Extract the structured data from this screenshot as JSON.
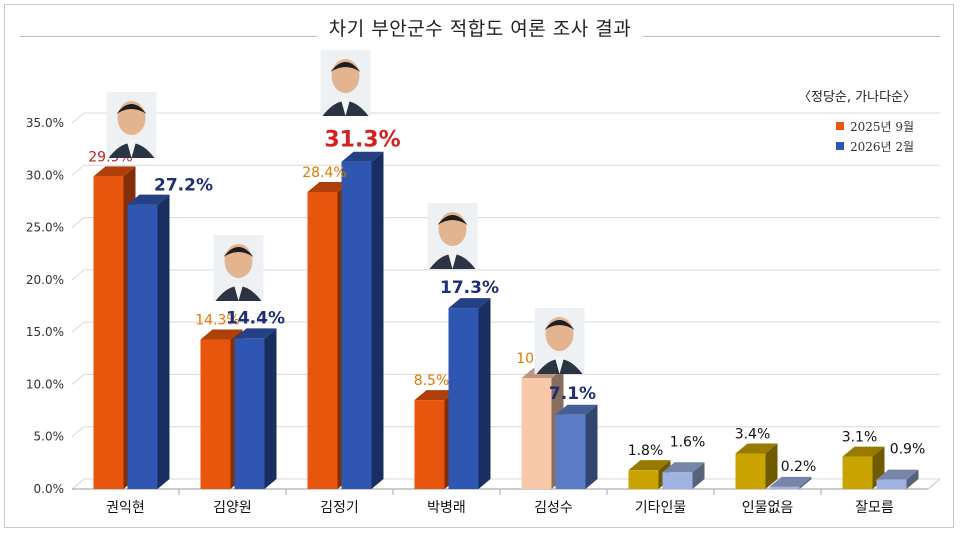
{
  "chart_data": {
    "type": "bar",
    "title": "차기 부안군수 적합도 여론 조사 결과",
    "note": "〈정당순, 가나다순〉",
    "categories": [
      "권익현",
      "김양원",
      "김정기",
      "박병래",
      "김성수",
      "기타인물",
      "인물없음",
      "잘모름"
    ],
    "series": [
      {
        "name": "2025년 9월",
        "values": [
          29.9,
          14.3,
          28.4,
          8.5,
          10.6,
          1.8,
          3.4,
          3.1
        ],
        "labels": [
          "29.9%",
          "14.3%",
          "28.4%",
          "8.5%",
          "10.6%",
          "1.8%",
          "3.4%",
          "3.1%"
        ]
      },
      {
        "name": "2026년 2월",
        "values": [
          27.2,
          14.4,
          31.3,
          17.3,
          7.1,
          1.6,
          0.2,
          0.9
        ],
        "labels": [
          "27.2%",
          "14.4%",
          "31.3%",
          "17.3%",
          "7.1%",
          "1.6%",
          "0.2%",
          "0.9%"
        ]
      }
    ],
    "ylim": [
      0,
      35
    ],
    "yticks": [
      "0.0%",
      "5.0%",
      "10.0%",
      "15.0%",
      "20.0%",
      "25.0%",
      "30.0%",
      "35.0%"
    ],
    "grid": true,
    "legend_position": "top-right",
    "colors": {
      "s1": "#e8560e",
      "s2": "#2f56b0",
      "s1_light": "#f8c8a8",
      "s2_light": "#5b7dc8",
      "other1": "#c9a400",
      "other2": "#9fb2e0",
      "label1": "#e07a00",
      "label2": "#1e2f78",
      "highlight": "#d42020",
      "first_label": "#c02020"
    }
  }
}
